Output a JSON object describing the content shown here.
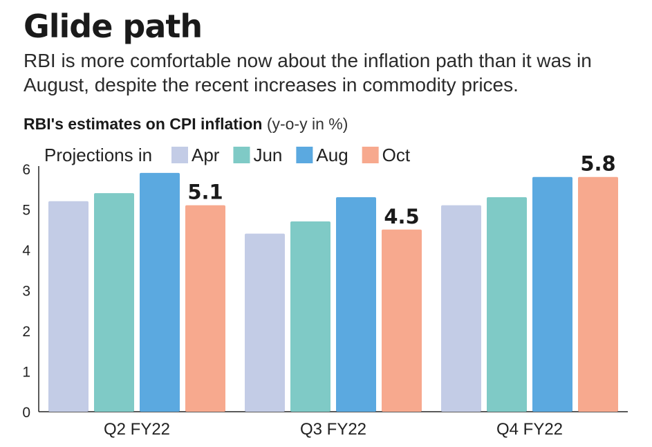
{
  "title": "Glide path",
  "subtitle": "RBI is more comfortable now about the inflation path than it was in August, despite the recent increases in commodity prices.",
  "chart_heading": {
    "bold": "RBI's estimates on CPI inflation",
    "light": "(y-o-y in %)"
  },
  "legend_prefix": "Projections in",
  "chart_data": {
    "type": "bar",
    "categories": [
      "Q2 FY22",
      "Q3 FY22",
      "Q4 FY22"
    ],
    "series": [
      {
        "name": "Apr",
        "color": "#c3cce6",
        "values": [
          5.2,
          4.4,
          5.1
        ]
      },
      {
        "name": "Jun",
        "color": "#7fcac6",
        "values": [
          5.4,
          4.7,
          5.3
        ]
      },
      {
        "name": "Aug",
        "color": "#5ba9e0",
        "values": [
          5.9,
          5.3,
          5.8
        ]
      },
      {
        "name": "Oct",
        "color": "#f7a98e",
        "values": [
          5.1,
          4.5,
          5.8
        ],
        "data_labels": [
          "5.1",
          "4.5",
          "5.8"
        ]
      }
    ],
    "ylim": [
      0,
      6
    ],
    "yticks": [
      "0",
      "1",
      "2",
      "3",
      "4",
      "5",
      "6"
    ],
    "grid": false,
    "legend_position": "top-left"
  }
}
